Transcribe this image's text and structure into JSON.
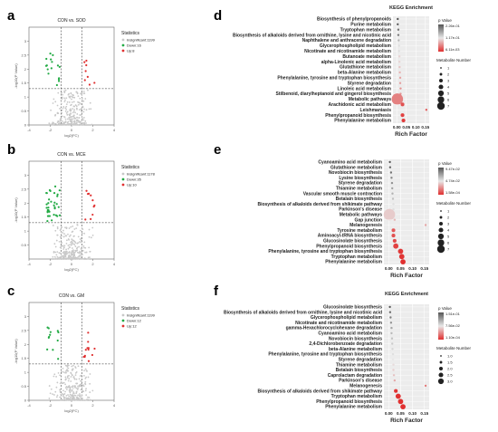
{
  "panels": [
    {
      "letter": "a",
      "title": "CON vs. SOD"
    },
    {
      "letter": "b",
      "title": "CON vs. MCE"
    },
    {
      "letter": "c",
      "title": "CON vs. GM"
    },
    {
      "letter": "d",
      "title": "KEGG Enrichment"
    },
    {
      "letter": "e",
      "title": ""
    },
    {
      "letter": "f",
      "title": "KEGG Enrichment"
    }
  ],
  "colors": {
    "insig": "#c8c8c8",
    "down": "#22aa44",
    "up": "#e03030",
    "bubble": "#e05050"
  },
  "chart_data": [
    {
      "type": "scatter",
      "panel": "a",
      "title": "CON vs. SOD",
      "xlabel": "log2(FC)",
      "ylabel": "-log10(P Value)",
      "xlim": [
        -4,
        4
      ],
      "ylim": [
        0,
        3.5
      ],
      "xticks": [
        "-4",
        "-2",
        "0",
        "2",
        "4"
      ],
      "yticks": [
        "0",
        "0.5",
        "1",
        "1.5",
        "2",
        "2.5",
        "3"
      ],
      "legend": {
        "title": "Statistics",
        "entries": [
          "Insignificant:1199",
          "Down:16",
          "Up:8"
        ]
      },
      "series": [
        {
          "name": "Insignificant:1199",
          "count": 1199
        },
        {
          "name": "Down:16",
          "count": 16
        },
        {
          "name": "Up:8",
          "count": 8
        }
      ]
    },
    {
      "type": "scatter",
      "panel": "b",
      "title": "CON vs. MCE",
      "xlabel": "log2(FC)",
      "ylabel": "-log10(P Value)",
      "xlim": [
        -4,
        4
      ],
      "ylim": [
        0,
        3.5
      ],
      "xticks": [
        "-4",
        "-2",
        "0",
        "2",
        "4"
      ],
      "yticks": [
        "0.5",
        "1",
        "1.5",
        "2",
        "2.5",
        "3"
      ],
      "legend": {
        "title": "Statistics",
        "entries": [
          "Insignificant:1178",
          "Down:35",
          "Up:10"
        ]
      },
      "series": [
        {
          "name": "Insignificant:1178",
          "count": 1178
        },
        {
          "name": "Down:35",
          "count": 35
        },
        {
          "name": "Up:10",
          "count": 10
        }
      ]
    },
    {
      "type": "scatter",
      "panel": "c",
      "title": "CON vs. GM",
      "xlabel": "log2(FC)",
      "ylabel": "-log10(P Value)",
      "xlim": [
        -4,
        4
      ],
      "ylim": [
        0,
        3.5
      ],
      "xticks": [
        "-4",
        "-2",
        "0",
        "2",
        "4"
      ],
      "yticks": [
        "0",
        "0.5",
        "1",
        "1.5",
        "2",
        "2.5",
        "3"
      ],
      "legend": {
        "title": "Statistics",
        "entries": [
          "Insignificant:1199",
          "Down:12",
          "Up:12"
        ]
      },
      "series": [
        {
          "name": "Insignificant:1199",
          "count": 1199
        },
        {
          "name": "Down:12",
          "count": 12
        },
        {
          "name": "Up:12",
          "count": 12
        }
      ]
    },
    {
      "type": "bubble",
      "panel": "d",
      "title": "KEGG Enrichment",
      "xlabel": "Rich Factor",
      "xlim": [
        -0.02,
        0.17
      ],
      "xticks": [
        "0.00",
        "0.05",
        "0.10",
        "0.15"
      ],
      "pvalue_legend": {
        "title": "p Value",
        "labels": [
          "2.26e-01",
          "1.17e-01",
          "6.11e-03"
        ]
      },
      "size_legend": {
        "title": "Metabolite Number",
        "labels": [
          "1",
          "2",
          "3",
          "4",
          "5",
          "6",
          "7"
        ]
      },
      "categories": [
        "Biosynthesis of phenylpropanoids",
        "Purine metabolism",
        "Tryptophan metabolism",
        "Biosynthesis of alkaloids derived from ornithine, lysine and nicotinic acid",
        "Naphthalene and anthracene degradation",
        "Glycerophospholipid metabolism",
        "Nicotinate and nicotinamide metabolism",
        "Butanoate metabolism",
        "alpha-Linolenic acid metabolism",
        "Glutathione metabolism",
        "beta-Alanine metabolism",
        "Phenylalanine, tyrosine and tryptophan biosynthesis",
        "Styrene degradation",
        "Linoleic acid metabolism",
        "Stilbenoid, diarylheptanoid and gingerol biosynthesis",
        "Metabolic pathways",
        "Arachidonic acid metabolism",
        "Leishmaniasis",
        "Phenylpropanoid biosynthesis",
        "Phenylalanine metabolism"
      ],
      "values": [
        0.005,
        0.005,
        0.008,
        0.008,
        0.01,
        0.012,
        0.012,
        0.014,
        0.014,
        0.015,
        0.016,
        0.018,
        0.018,
        0.02,
        0.02,
        0.003,
        0.03,
        0.155,
        0.03,
        0.035
      ],
      "sizes": [
        1,
        1,
        1,
        1,
        1,
        1,
        1,
        1,
        1,
        1,
        1,
        1,
        1,
        1,
        1,
        7,
        2,
        1,
        2,
        2
      ],
      "pvalues": [
        0.226,
        0.22,
        0.2,
        0.2,
        0.15,
        0.12,
        0.12,
        0.1,
        0.1,
        0.09,
        0.08,
        0.07,
        0.07,
        0.06,
        0.06,
        0.05,
        0.02,
        0.03,
        0.01,
        0.006
      ]
    },
    {
      "type": "bubble",
      "panel": "e",
      "title": "",
      "xlabel": "Rich Factor",
      "xlim": [
        -0.02,
        0.17
      ],
      "xticks": [
        "0.00",
        "0.05",
        "0.10",
        "0.15"
      ],
      "pvalue_legend": {
        "title": "p Value",
        "labels": [
          "9.47e-02",
          "4.74e-02",
          "1.58e-04"
        ]
      },
      "size_legend": {
        "title": "Metabolite Number",
        "labels": [
          "1",
          "2",
          "3",
          "4",
          "5",
          "6",
          "7"
        ]
      },
      "categories": [
        "Cyanoamino acid metabolism",
        "Glutathione metabolism",
        "Novobiocin biosynthesis",
        "Lysine biosynthesis",
        "Styrene degradation",
        "Thiamine metabolism",
        "Vascular smooth muscle contraction",
        "Betalain biosynthesis",
        "Biosynthesis of alkaloids derived from shikimate pathway",
        "Parkinson's disease",
        "Metabolic pathways",
        "Gap junction",
        "Melanogenesis",
        "Tyrosine metabolism",
        "Aminoacyl-tRNA biosynthesis",
        "Glucosinolate biosynthesis",
        "Phenylpropanoid biosynthesis",
        "Phenylalanine, tyrosine and tryptophan biosynthesis",
        "Tryptophan metabolism",
        "Phenylalanine metabolism"
      ],
      "values": [
        0.005,
        0.006,
        0.01,
        0.012,
        0.014,
        0.015,
        0.016,
        0.018,
        0.02,
        0.02,
        0.003,
        0.025,
        0.155,
        0.02,
        0.02,
        0.025,
        0.03,
        0.05,
        0.055,
        0.06
      ],
      "sizes": [
        1,
        1,
        1,
        1,
        1,
        1,
        1,
        1,
        1,
        1,
        7,
        1,
        1,
        2,
        2,
        2,
        3,
        3,
        3,
        3
      ],
      "pvalues": [
        0.0947,
        0.09,
        0.085,
        0.08,
        0.075,
        0.07,
        0.065,
        0.06,
        0.05,
        0.05,
        0.04,
        0.035,
        0.03,
        0.01,
        0.008,
        0.006,
        0.004,
        0.002,
        0.001,
        0.0002
      ]
    },
    {
      "type": "bubble",
      "panel": "f",
      "title": "KEGG Enrichment",
      "xlabel": "Rich Factor",
      "xlim": [
        -0.02,
        0.17
      ],
      "xticks": [
        "0.00",
        "0.05",
        "0.10",
        "0.15"
      ],
      "pvalue_legend": {
        "title": "p Value",
        "labels": [
          "1.51e-01",
          "7.56e-02",
          "1.10e-04"
        ]
      },
      "size_legend": {
        "title": "Metabolite Number",
        "labels": [
          "1.0",
          "1.5",
          "2.0",
          "2.5",
          "3.0"
        ]
      },
      "categories": [
        "Glucosinolate biosynthesis",
        "Biosynthesis of alkaloids derived from ornithine, lysine and nicotinic acid",
        "Glycerophospholipid metabolism",
        "Nicotinate and nicotinamide metabolism",
        "gamma-Hexachlorocyclohexane degradation",
        "Cyanoamino acid metabolism",
        "Novobiocin biosynthesis",
        "2,4-Dichlorobenzoate degradation",
        "beta-Alanine metabolism",
        "Phenylalanine, tyrosine and tryptophan biosynthesis",
        "Styrene degradation",
        "Thiamine metabolism",
        "Betalain biosynthesis",
        "Caprolactam degradation",
        "Parkinson's disease",
        "Melanogenesis",
        "Biosynthesis of alkaloids derived from shikimate pathway",
        "Tryptophan metabolism",
        "Phenylpropanoid biosynthesis",
        "Phenylalanine metabolism"
      ],
      "values": [
        0.005,
        0.006,
        0.008,
        0.01,
        0.012,
        0.012,
        0.014,
        0.015,
        0.016,
        0.018,
        0.018,
        0.02,
        0.02,
        0.022,
        0.025,
        0.155,
        0.03,
        0.04,
        0.05,
        0.06
      ],
      "sizes": [
        1,
        1,
        1,
        1,
        1,
        1,
        1,
        1,
        1,
        1,
        1,
        1,
        1,
        1,
        1,
        1,
        2,
        3,
        3,
        3
      ],
      "pvalues": [
        0.151,
        0.14,
        0.13,
        0.12,
        0.11,
        0.1,
        0.095,
        0.09,
        0.085,
        0.08,
        0.075,
        0.07,
        0.065,
        0.06,
        0.05,
        0.03,
        0.002,
        0.001,
        0.0005,
        0.0001
      ]
    }
  ]
}
